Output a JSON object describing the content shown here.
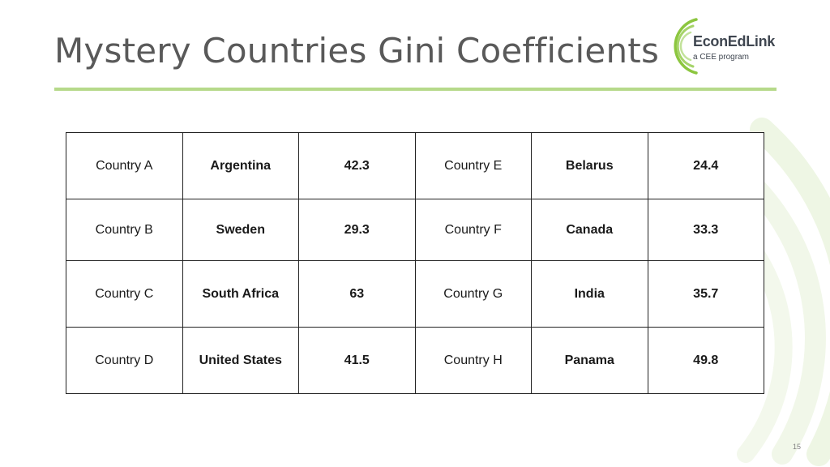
{
  "slide": {
    "title": "Mystery Countries Gini Coefficients",
    "page_number": "15"
  },
  "logo": {
    "name": "EconEdLink",
    "tagline": "a CEE program"
  },
  "colors": {
    "accent_green": "#b6d98a",
    "title_gray": "#595959",
    "logo_text": "#3f4650"
  },
  "table": {
    "rows": [
      {
        "left": {
          "label": "Country A",
          "country": "Argentina",
          "gini": "42.3"
        },
        "right": {
          "label": "Country E",
          "country": "Belarus",
          "gini": "24.4"
        }
      },
      {
        "left": {
          "label": "Country B",
          "country": "Sweden",
          "gini": "29.3"
        },
        "right": {
          "label": "Country F",
          "country": "Canada",
          "gini": "33.3"
        }
      },
      {
        "left": {
          "label": "Country C",
          "country": "South Africa",
          "gini": "63"
        },
        "right": {
          "label": "Country G",
          "country": "India",
          "gini": "35.7"
        }
      },
      {
        "left": {
          "label": "Country D",
          "country": "United States",
          "gini": "41.5"
        },
        "right": {
          "label": "Country H",
          "country": "Panama",
          "gini": "49.8"
        }
      }
    ]
  }
}
